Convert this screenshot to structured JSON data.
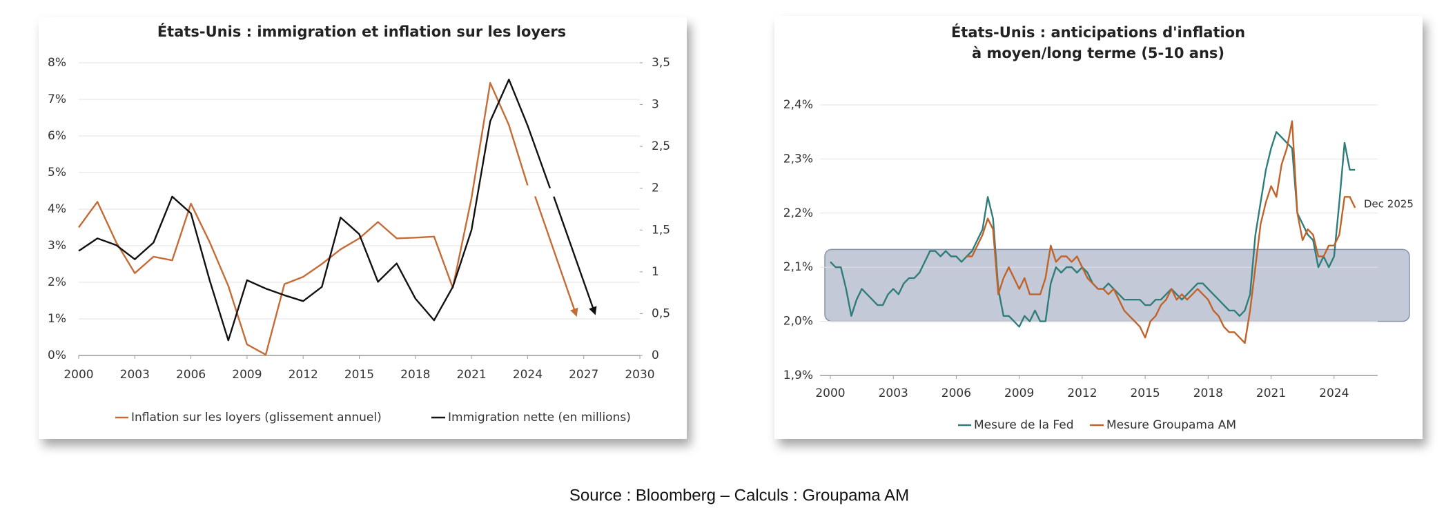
{
  "chart_data": [
    {
      "type": "line",
      "title": "États-Unis : immigration et inflation sur les loyers",
      "xlim": [
        2000,
        2030
      ],
      "xticks": [
        2000,
        2003,
        2006,
        2009,
        2012,
        2015,
        2018,
        2021,
        2024,
        2027,
        2030
      ],
      "ylim": [
        0,
        8
      ],
      "yticks": [
        {
          "value": 0,
          "label": "0%"
        },
        {
          "value": 1,
          "label": "1%"
        },
        {
          "value": 2,
          "label": "2%"
        },
        {
          "value": 3,
          "label": "3%"
        },
        {
          "value": 4,
          "label": "4%"
        },
        {
          "value": 5,
          "label": "5%"
        },
        {
          "value": 6,
          "label": "6%"
        },
        {
          "value": 7,
          "label": "7%"
        },
        {
          "value": 8,
          "label": "8%"
        }
      ],
      "ytick_color": "#c0703a",
      "y2lim": [
        0,
        3.5
      ],
      "y2ticks": [
        0,
        {
          "value": 0.5,
          "label": "0,5"
        },
        1,
        {
          "value": 1.5,
          "label": "1,5"
        },
        2,
        {
          "value": 2.5,
          "label": "2,5"
        },
        3,
        {
          "value": 3.5,
          "label": "3,5"
        }
      ],
      "grid": true,
      "series": [
        {
          "name": "Inflation sur les loyers (glissement annuel)",
          "color": "#c46b36",
          "arrow_end": true,
          "x": [
            2000,
            2001,
            2002,
            2003,
            2004,
            2005,
            2006,
            2007,
            2008,
            2009,
            2010,
            2011,
            2012,
            2013,
            2014,
            2015,
            2016,
            2017,
            2018,
            2019,
            2020,
            2021,
            2022,
            2023,
            2024,
            2024.25,
            2024.4,
            2026.6
          ],
          "values": [
            3.5,
            4.2,
            3.1,
            2.25,
            2.7,
            2.6,
            4.15,
            3.1,
            1.9,
            0.3,
            0.02,
            1.95,
            2.15,
            2.5,
            2.9,
            3.2,
            3.65,
            3.2,
            3.22,
            3.25,
            1.85,
            4.3,
            7.45,
            6.3,
            4.65,
            null,
            4.35,
            1.1
          ]
        },
        {
          "name": "Immigration nette (en millions)",
          "color": "#111111",
          "axis": "y2",
          "arrow_end": true,
          "x": [
            2000,
            2001,
            2002,
            2003,
            2004,
            2005,
            2006,
            2007,
            2008,
            2009,
            2010,
            2011,
            2012,
            2013,
            2014,
            2015,
            2016,
            2017,
            2018,
            2019,
            2020,
            2021,
            2022,
            2023,
            2024,
            2025.2,
            2025.3,
            2025.4,
            2027.6
          ],
          "values": [
            1.25,
            1.4,
            1.32,
            1.15,
            1.35,
            1.9,
            1.7,
            0.9,
            0.18,
            0.9,
            0.8,
            0.72,
            0.65,
            0.82,
            1.65,
            1.45,
            0.88,
            1.1,
            0.68,
            0.42,
            0.82,
            1.5,
            2.8,
            3.3,
            2.75,
            2.0,
            null,
            1.9,
            0.5
          ]
        }
      ]
    },
    {
      "type": "line",
      "title": "États-Unis : anticipations d'inflation",
      "subtitle": "à moyen/long terme (5-10 ans)",
      "xlim": [
        2000,
        2027
      ],
      "xticks": [
        2000,
        2003,
        2006,
        2009,
        2012,
        2015,
        2018,
        2021,
        2024
      ],
      "ylim": [
        1.9,
        2.4
      ],
      "yticks": [
        {
          "value": 1.9,
          "label": "1,9%"
        },
        {
          "value": 2.0,
          "label": "2,0%"
        },
        {
          "value": 2.1,
          "label": "2,1%"
        },
        {
          "value": 2.2,
          "label": "2,2%"
        },
        {
          "value": 2.3,
          "label": "2,3%"
        },
        {
          "value": 2.4,
          "label": "2,4%"
        }
      ],
      "ytick_color": "#333333",
      "grid": true,
      "shaded_band": [
        2.0,
        2.133
      ],
      "annotation": "Dec 2025",
      "x": [
        2000,
        2000.25,
        2000.5,
        2000.75,
        2001,
        2001.25,
        2001.5,
        2001.75,
        2002,
        2002.25,
        2002.5,
        2002.75,
        2003,
        2003.25,
        2003.5,
        2003.75,
        2004,
        2004.25,
        2004.5,
        2004.75,
        2005,
        2005.25,
        2005.5,
        2005.75,
        2006,
        2006.25,
        2006.5,
        2006.75,
        2007,
        2007.25,
        2007.5,
        2007.75,
        2008,
        2008.25,
        2008.5,
        2008.75,
        2009,
        2009.25,
        2009.5,
        2009.75,
        2010,
        2010.25,
        2010.5,
        2010.75,
        2011,
        2011.25,
        2011.5,
        2011.75,
        2012,
        2012.25,
        2012.5,
        2012.75,
        2013,
        2013.25,
        2013.5,
        2013.75,
        2014,
        2014.25,
        2014.5,
        2014.75,
        2015,
        2015.25,
        2015.5,
        2015.75,
        2016,
        2016.25,
        2016.5,
        2016.75,
        2017,
        2017.25,
        2017.5,
        2017.75,
        2018,
        2018.25,
        2018.5,
        2018.75,
        2019,
        2019.25,
        2019.5,
        2019.75,
        2020,
        2020.25,
        2020.5,
        2020.75,
        2021,
        2021.25,
        2021.5,
        2021.75,
        2022,
        2022.25,
        2022.5,
        2022.75,
        2023,
        2023.25,
        2023.5,
        2023.75,
        2024,
        2024.25,
        2024.5,
        2024.75,
        2025
      ],
      "series": [
        {
          "name": "Mesure de la Fed",
          "color": "#2e7d7a",
          "values": [
            2.11,
            2.1,
            2.1,
            2.06,
            2.01,
            2.04,
            2.06,
            2.05,
            2.04,
            2.03,
            2.03,
            2.05,
            2.06,
            2.05,
            2.07,
            2.08,
            2.08,
            2.09,
            2.11,
            2.13,
            2.13,
            2.12,
            2.13,
            2.12,
            2.12,
            2.11,
            2.12,
            2.13,
            2.15,
            2.17,
            2.23,
            2.19,
            2.06,
            2.01,
            2.01,
            2.0,
            1.99,
            2.01,
            2.0,
            2.02,
            2.0,
            2.0,
            2.07,
            2.1,
            2.09,
            2.1,
            2.1,
            2.09,
            2.1,
            2.09,
            2.07,
            2.06,
            2.06,
            2.07,
            2.06,
            2.05,
            2.04,
            2.04,
            2.04,
            2.04,
            2.03,
            2.03,
            2.04,
            2.04,
            2.05,
            2.06,
            2.05,
            2.04,
            2.05,
            2.06,
            2.07,
            2.07,
            2.06,
            2.05,
            2.04,
            2.03,
            2.02,
            2.02,
            2.01,
            2.02,
            2.05,
            2.16,
            2.22,
            2.28,
            2.32,
            2.35,
            2.34,
            2.33,
            2.32,
            2.2,
            2.18,
            2.16,
            2.15,
            2.1,
            2.12,
            2.1,
            2.12,
            2.22,
            2.33,
            2.28,
            2.28
          ]
        },
        {
          "name": "Mesure Groupama AM",
          "color": "#c0632b",
          "values": [
            null,
            null,
            null,
            null,
            null,
            null,
            null,
            null,
            null,
            null,
            null,
            null,
            null,
            null,
            null,
            null,
            null,
            null,
            null,
            null,
            null,
            null,
            null,
            null,
            null,
            null,
            2.12,
            2.12,
            2.14,
            2.16,
            2.19,
            2.17,
            2.05,
            2.08,
            2.1,
            2.08,
            2.06,
            2.08,
            2.05,
            2.05,
            2.05,
            2.08,
            2.14,
            2.11,
            2.12,
            2.12,
            2.11,
            2.12,
            2.1,
            2.08,
            2.07,
            2.06,
            2.06,
            2.05,
            2.06,
            2.04,
            2.02,
            2.01,
            2.0,
            1.99,
            1.97,
            2.0,
            2.01,
            2.03,
            2.04,
            2.06,
            2.04,
            2.05,
            2.04,
            2.05,
            2.06,
            2.05,
            2.04,
            2.02,
            2.01,
            1.99,
            1.98,
            1.98,
            1.97,
            1.96,
            2.02,
            2.1,
            2.18,
            2.22,
            2.25,
            2.23,
            2.29,
            2.32,
            2.37,
            2.2,
            2.15,
            2.17,
            2.16,
            2.12,
            2.12,
            2.14,
            2.14,
            2.16,
            2.23,
            2.23,
            2.21
          ]
        }
      ]
    }
  ],
  "source": "Source : Bloomberg – Calculs : Groupama AM"
}
